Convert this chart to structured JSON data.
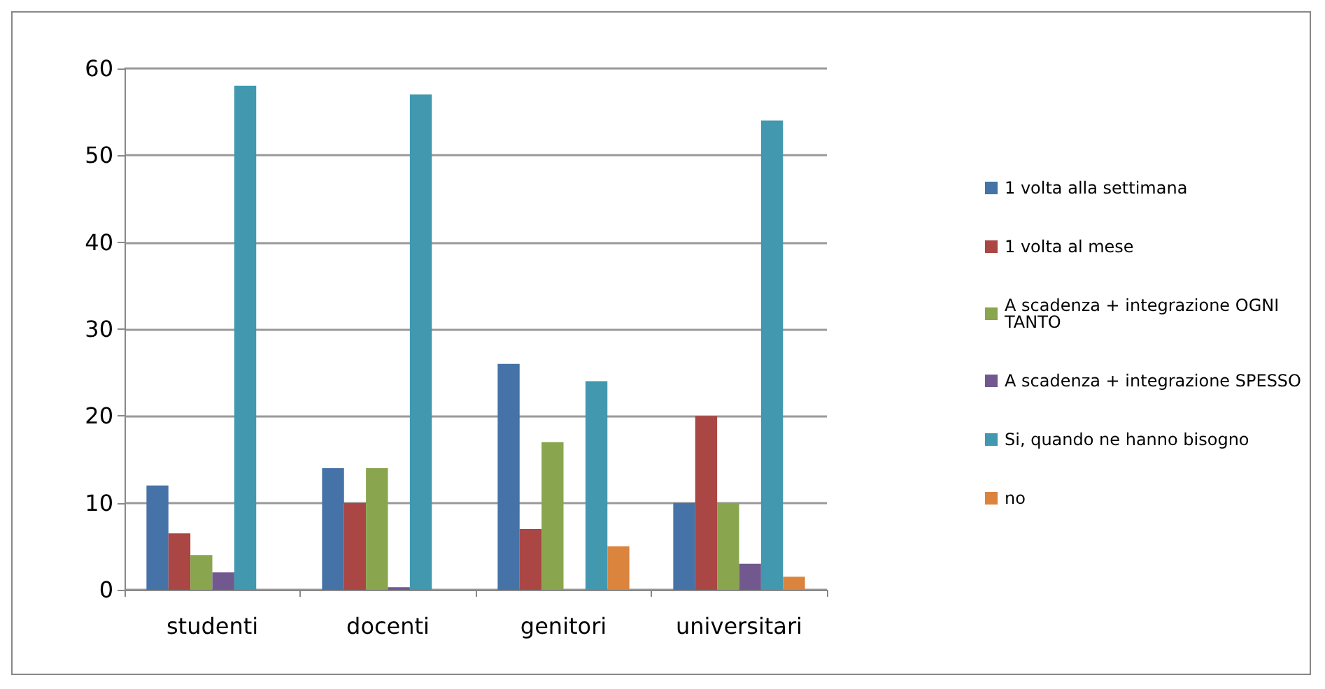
{
  "chart_data": {
    "type": "bar",
    "categories": [
      "studenti",
      "docenti",
      "genitori",
      "universitari"
    ],
    "series": [
      {
        "name": "1 volta alla settimana",
        "color": "#4572a7",
        "values": [
          12,
          14,
          26,
          10
        ]
      },
      {
        "name": "1 volta al mese",
        "color": "#aa4643",
        "values": [
          6.5,
          10,
          7,
          20
        ]
      },
      {
        "name": "A scadenza + integrazione OGNI TANTO",
        "color": "#89a54e",
        "values": [
          4,
          14,
          17,
          10
        ]
      },
      {
        "name": "A scadenza + integrazione SPESSO",
        "color": "#71588f",
        "values": [
          2,
          0.3,
          0,
          3
        ]
      },
      {
        "name": "Si, quando ne hanno bisogno",
        "color": "#4198af",
        "values": [
          58,
          57,
          24,
          54
        ]
      },
      {
        "name": "no",
        "color": "#db843d",
        "values": [
          0,
          0,
          5,
          1.5
        ]
      }
    ],
    "ylim": [
      0,
      60
    ],
    "yticks": [
      0,
      10,
      20,
      30,
      40,
      50,
      60
    ],
    "grid": "y",
    "legend": "right"
  }
}
